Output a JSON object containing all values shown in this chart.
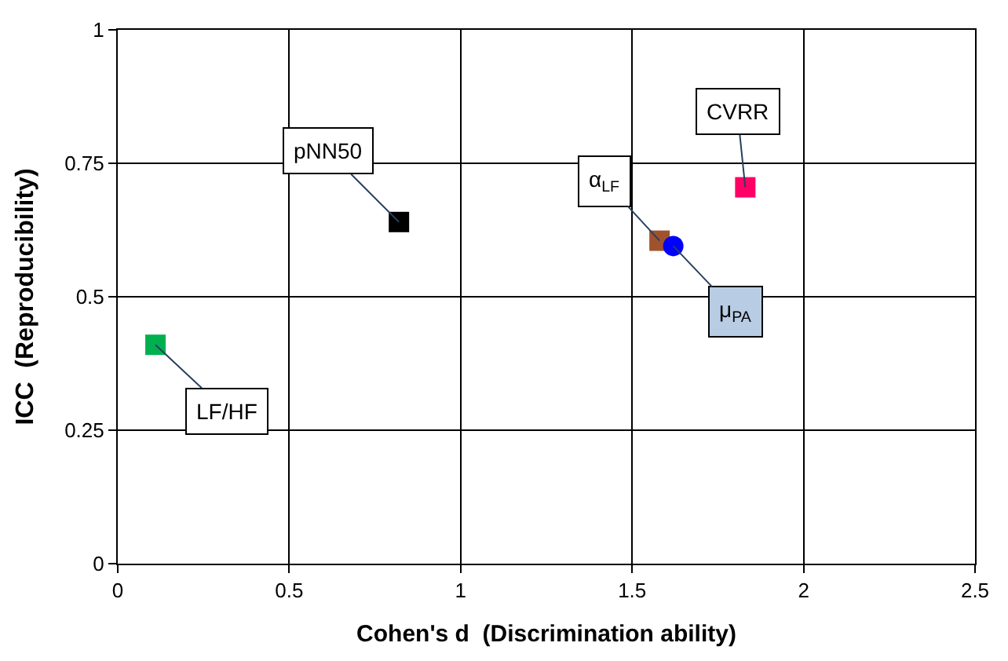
{
  "chart_data": {
    "type": "scatter",
    "xlabel": "Cohen's d  (Discrimination ability)",
    "ylabel": "ICC  (Reproducibility)",
    "xlim": [
      0,
      2.5
    ],
    "xticks": [
      0,
      0.5,
      1,
      1.5,
      2,
      2.5
    ],
    "ylim": [
      0,
      1
    ],
    "yticks": [
      0,
      0.25,
      0.5,
      0.75,
      1
    ],
    "grid": true,
    "series": [
      {
        "color": "#000000",
        "marker": "square",
        "x": [
          0.82
        ],
        "values": [
          0.64
        ]
      },
      {
        "color": "#00b050",
        "marker": "square",
        "x": [
          0.11
        ],
        "values": [
          0.41
        ]
      },
      {
        "color": "#a0522d",
        "marker": "square",
        "x": [
          1.58
        ],
        "values": [
          0.605
        ]
      },
      {
        "color": "#0000ff",
        "marker": "circle",
        "x": [
          1.62
        ],
        "values": [
          0.595
        ]
      },
      {
        "color": "#ff0066",
        "marker": "square",
        "x": [
          1.83
        ],
        "values": [
          0.705
        ]
      }
    ],
    "annotations": [
      {
        "text": "pNN50",
        "x": 0.82,
        "y": 0.64
      },
      {
        "text": "LF/HF",
        "x": 0.11,
        "y": 0.41
      },
      {
        "text": "α$_{LF}$",
        "x": 1.58,
        "y": 0.605
      },
      {
        "text": "μ$_{PA}$",
        "x": 1.62,
        "y": 0.595
      },
      {
        "text": "CVRR",
        "x": 1.83,
        "y": 0.705
      }
    ]
  }
}
